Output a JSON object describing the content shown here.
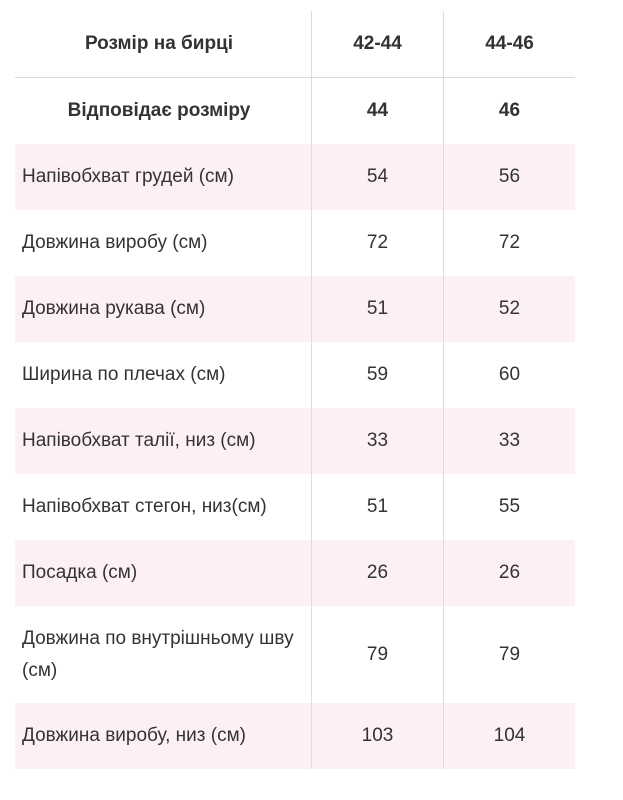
{
  "table": {
    "header": {
      "label": "Розмір на бирці",
      "col1": "42-44",
      "col2": "44-46"
    },
    "rows": [
      {
        "label": "Відповідає розміру",
        "v1": "44",
        "v2": "46"
      },
      {
        "label": "Напівобхват грудей (см)",
        "v1": "54",
        "v2": "56"
      },
      {
        "label": "Довжина виробу (см)",
        "v1": "72",
        "v2": "72"
      },
      {
        "label": "Довжина рукава (см)",
        "v1": "51",
        "v2": "52"
      },
      {
        "label": "Ширина по плечах (см)",
        "v1": "59",
        "v2": "60"
      },
      {
        "label": "Напівобхват талії, низ (см)",
        "v1": "33",
        "v2": "33"
      },
      {
        "label": "Напівобхват стегон, низ(см)",
        "v1": "51",
        "v2": "55"
      },
      {
        "label": "Посадка (см)",
        "v1": "26",
        "v2": "26"
      },
      {
        "label": "Довжина по внутрішньому шву (см)",
        "v1": "79",
        "v2": "79"
      },
      {
        "label": "Довжина виробу, низ (см)",
        "v1": "103",
        "v2": "104"
      }
    ]
  }
}
